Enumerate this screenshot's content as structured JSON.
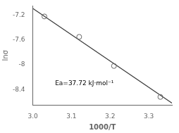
{
  "chart_data": {
    "type": "scatter",
    "xlabel": "1000/T",
    "ylabel": "lnσ",
    "annotation": "Ea=37.72 kJ·mol⁻¹",
    "series": [
      {
        "type": "line",
        "color": "#3a3a3a",
        "line_style": "solid",
        "x": [
          3.0,
          3.36
        ],
        "values": [
          -7.09,
          -8.62
        ]
      },
      {
        "type": "scatter",
        "color": "#666666",
        "marker": "open_circle",
        "x": [
          3.03,
          3.12,
          3.21,
          3.33
        ],
        "values": [
          -7.22,
          -7.55,
          -8.02,
          -8.52
        ]
      }
    ],
    "xlim": [
      3.0,
      3.36
    ],
    "ylim": [
      -8.65,
      -7.05
    ],
    "xticks": [
      {
        "value": 3.0,
        "label": "3.0"
      },
      3.1,
      3.2,
      3.3
    ],
    "yticks": [
      -8.4,
      -8.0,
      -7.6,
      -7.2
    ],
    "grid": false
  }
}
